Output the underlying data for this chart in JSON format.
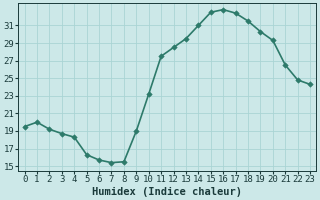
{
  "x": [
    0,
    1,
    2,
    3,
    4,
    5,
    6,
    7,
    8,
    9,
    10,
    11,
    12,
    13,
    14,
    15,
    16,
    17,
    18,
    19,
    20,
    21,
    22,
    23
  ],
  "y": [
    19.5,
    20.0,
    19.2,
    18.7,
    18.3,
    16.3,
    15.7,
    15.4,
    15.5,
    19.0,
    23.2,
    27.5,
    28.5,
    29.5,
    31.0,
    32.5,
    32.8,
    32.4,
    31.5,
    30.3,
    29.3,
    26.5,
    24.8,
    24.3
  ],
  "line_color": "#2d7a6a",
  "marker_color": "#2d7a6a",
  "bg_color": "#cce8e8",
  "grid_color": "#aad4d4",
  "xlabel": "Humidex (Indice chaleur)",
  "ylim": [
    14.5,
    33.5
  ],
  "xlim": [
    -0.5,
    23.5
  ],
  "yticks": [
    15,
    17,
    19,
    21,
    23,
    25,
    27,
    29,
    31
  ],
  "xticks": [
    0,
    1,
    2,
    3,
    4,
    5,
    6,
    7,
    8,
    9,
    10,
    11,
    12,
    13,
    14,
    15,
    16,
    17,
    18,
    19,
    20,
    21,
    22,
    23
  ],
  "xtick_labels": [
    "0",
    "1",
    "2",
    "3",
    "4",
    "5",
    "6",
    "7",
    "8",
    "9",
    "10",
    "11",
    "12",
    "13",
    "14",
    "15",
    "16",
    "17",
    "18",
    "19",
    "20",
    "21",
    "22",
    "23"
  ],
  "font_color": "#1a3a3a",
  "xlabel_fontsize": 7.5,
  "tick_fontsize": 6.5,
  "linewidth": 1.2,
  "markersize": 2.8
}
